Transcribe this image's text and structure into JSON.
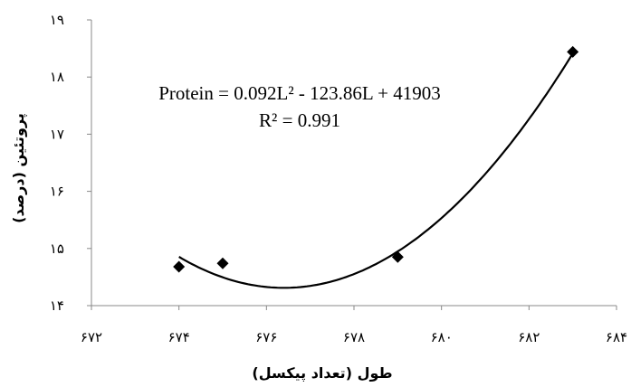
{
  "chart_data": {
    "type": "scatter",
    "title": "",
    "xlabel": "طول (تعداد پیکسل)",
    "ylabel": "پروتئین (درصد)",
    "xlim": [
      672,
      684
    ],
    "ylim": [
      14,
      19
    ],
    "x_ticks": [
      672,
      674,
      676,
      678,
      680,
      682,
      684
    ],
    "y_ticks": [
      14,
      15,
      16,
      17,
      18,
      19
    ],
    "x_tick_labels": [
      "۶۷۲",
      "۶۷۴",
      "۶۷۶",
      "۶۷۸",
      "۶۸۰",
      "۶۸۲",
      "۶۸۴"
    ],
    "y_tick_labels": [
      "۱۴",
      "۱۵",
      "۱۶",
      "۱۷",
      "۱۸",
      "۱۹"
    ],
    "grid": false,
    "series": [
      {
        "values": [
          {
            "x": 674.0,
            "y": 14.68
          },
          {
            "x": 675.0,
            "y": 14.74
          },
          {
            "x": 679.0,
            "y": 14.85
          },
          {
            "x": 683.0,
            "y": 18.44
          }
        ]
      }
    ],
    "trendline": {
      "type": "polynomial",
      "order": 2,
      "equation": "Protein = 0.092L² - 123.86L + 41903",
      "r_squared": "R² = 0.991"
    },
    "colors": {
      "marker": "#000000",
      "line": "#000000",
      "axis": "#888888"
    }
  }
}
